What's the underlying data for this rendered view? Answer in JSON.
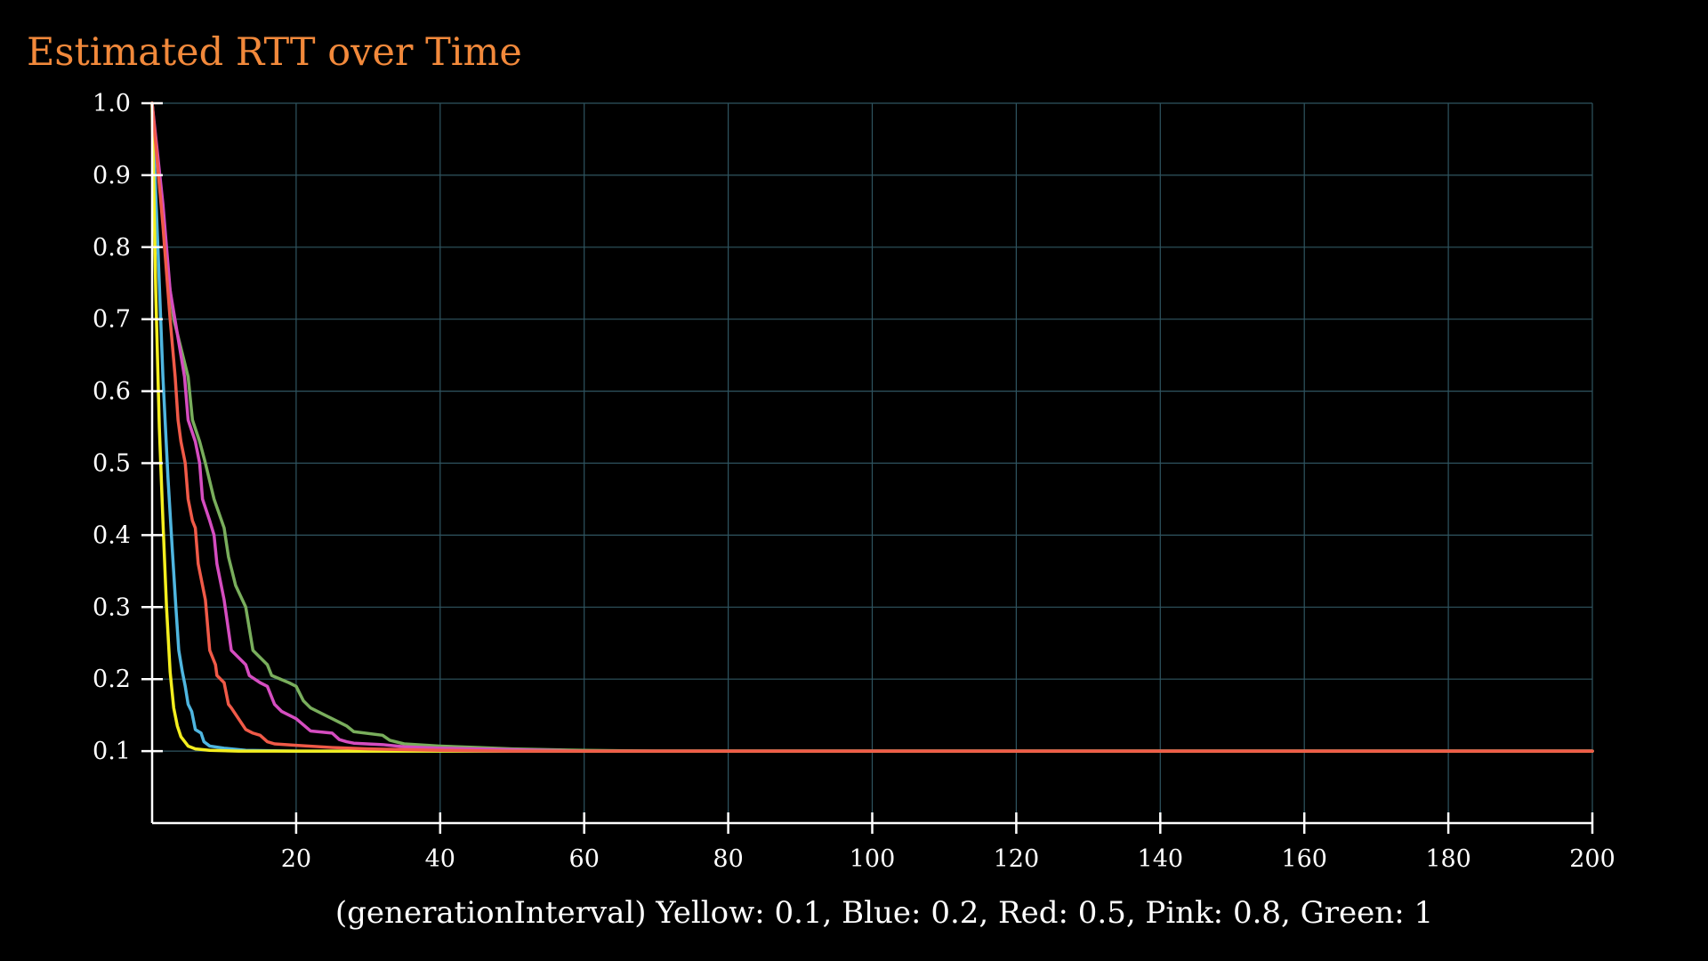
{
  "chart_data": {
    "type": "line",
    "title": "Estimated RTT over Time",
    "xlabel": "(generationInterval) Yellow: 0.1, Blue: 0.2, Red: 0.5, Pink: 0.8, Green: 1",
    "ylabel": "",
    "xlim": [
      0,
      200
    ],
    "ylim": [
      0,
      1.0
    ],
    "x_ticks": [
      20,
      40,
      60,
      80,
      100,
      120,
      140,
      160,
      180,
      200
    ],
    "y_ticks": [
      0.1,
      0.2,
      0.3,
      0.4,
      0.5,
      0.6,
      0.7,
      0.8,
      0.9,
      1.0
    ],
    "x_tick_labels": [
      "20",
      "40",
      "60",
      "80",
      "100",
      "120",
      "140",
      "160",
      "180",
      "200"
    ],
    "y_tick_labels": [
      "0.1",
      "0.2",
      "0.3",
      "0.4",
      "0.5",
      "0.6",
      "0.7",
      "0.8",
      "0.9",
      "1.0"
    ],
    "grid": true,
    "colors": {
      "background": "#000000",
      "title": "#f2893b",
      "grid": "#2f5561",
      "axis": "#ffffff"
    },
    "series": [
      {
        "color": "#f4ee1f",
        "points": [
          [
            0,
            1.0
          ],
          [
            0.5,
            0.74
          ],
          [
            1,
            0.55
          ],
          [
            1.5,
            0.42
          ],
          [
            2,
            0.3
          ],
          [
            2.5,
            0.21
          ],
          [
            3,
            0.16
          ],
          [
            3.5,
            0.135
          ],
          [
            4,
            0.12
          ],
          [
            5,
            0.107
          ],
          [
            6,
            0.103
          ],
          [
            8,
            0.101
          ],
          [
            12,
            0.1
          ],
          [
            20,
            0.1
          ],
          [
            200,
            0.1
          ]
        ]
      },
      {
        "color": "#4fb6e0",
        "points": [
          [
            0,
            1.0
          ],
          [
            0.8,
            0.8
          ],
          [
            1.5,
            0.62
          ],
          [
            2.2,
            0.48
          ],
          [
            2.8,
            0.38
          ],
          [
            3.3,
            0.3
          ],
          [
            3.7,
            0.24
          ],
          [
            4.2,
            0.21
          ],
          [
            4.6,
            0.19
          ],
          [
            5,
            0.165
          ],
          [
            5.5,
            0.155
          ],
          [
            6,
            0.13
          ],
          [
            6.8,
            0.125
          ],
          [
            7.2,
            0.113
          ],
          [
            8,
            0.107
          ],
          [
            10,
            0.104
          ],
          [
            13,
            0.101
          ],
          [
            20,
            0.1
          ],
          [
            200,
            0.1
          ]
        ]
      },
      {
        "color": "#f05a48",
        "points": [
          [
            0,
            1.0
          ],
          [
            1.5,
            0.83
          ],
          [
            2.5,
            0.7
          ],
          [
            3.2,
            0.62
          ],
          [
            3.6,
            0.56
          ],
          [
            4,
            0.53
          ],
          [
            4.6,
            0.5
          ],
          [
            5,
            0.45
          ],
          [
            5.6,
            0.42
          ],
          [
            6,
            0.41
          ],
          [
            6.4,
            0.36
          ],
          [
            7,
            0.33
          ],
          [
            7.4,
            0.31
          ],
          [
            8,
            0.24
          ],
          [
            8.8,
            0.22
          ],
          [
            9,
            0.205
          ],
          [
            10,
            0.195
          ],
          [
            10.6,
            0.165
          ],
          [
            11,
            0.16
          ],
          [
            12,
            0.145
          ],
          [
            13,
            0.13
          ],
          [
            14,
            0.125
          ],
          [
            15,
            0.122
          ],
          [
            16,
            0.113
          ],
          [
            17,
            0.11
          ],
          [
            20,
            0.108
          ],
          [
            25,
            0.105
          ],
          [
            30,
            0.103
          ],
          [
            40,
            0.101
          ],
          [
            50,
            0.1
          ],
          [
            200,
            0.1
          ]
        ]
      },
      {
        "color": "#d54dc0",
        "points": [
          [
            0,
            1.0
          ],
          [
            1.5,
            0.86
          ],
          [
            2.5,
            0.74
          ],
          [
            3.5,
            0.68
          ],
          [
            4.5,
            0.62
          ],
          [
            5,
            0.56
          ],
          [
            6,
            0.53
          ],
          [
            6.6,
            0.5
          ],
          [
            7,
            0.45
          ],
          [
            8,
            0.42
          ],
          [
            8.6,
            0.4
          ],
          [
            9,
            0.36
          ],
          [
            10,
            0.31
          ],
          [
            11,
            0.24
          ],
          [
            12,
            0.23
          ],
          [
            13,
            0.22
          ],
          [
            13.5,
            0.205
          ],
          [
            15,
            0.195
          ],
          [
            16,
            0.19
          ],
          [
            17,
            0.165
          ],
          [
            18,
            0.155
          ],
          [
            20,
            0.145
          ],
          [
            22,
            0.128
          ],
          [
            25,
            0.125
          ],
          [
            26,
            0.116
          ],
          [
            27,
            0.113
          ],
          [
            28,
            0.111
          ],
          [
            32,
            0.109
          ],
          [
            35,
            0.106
          ],
          [
            40,
            0.104
          ],
          [
            50,
            0.102
          ],
          [
            60,
            0.1
          ],
          [
            200,
            0.1
          ]
        ]
      },
      {
        "color": "#79ae5c",
        "points": [
          [
            0,
            1.0
          ],
          [
            1,
            0.89
          ],
          [
            2,
            0.78
          ],
          [
            3,
            0.7
          ],
          [
            4,
            0.66
          ],
          [
            5,
            0.62
          ],
          [
            5.6,
            0.56
          ],
          [
            6.6,
            0.53
          ],
          [
            7.4,
            0.5
          ],
          [
            8.6,
            0.45
          ],
          [
            10,
            0.41
          ],
          [
            10.6,
            0.37
          ],
          [
            11.6,
            0.33
          ],
          [
            13,
            0.3
          ],
          [
            14,
            0.24
          ],
          [
            16,
            0.22
          ],
          [
            16.6,
            0.205
          ],
          [
            19,
            0.195
          ],
          [
            20,
            0.19
          ],
          [
            21,
            0.17
          ],
          [
            22,
            0.16
          ],
          [
            24,
            0.15
          ],
          [
            25,
            0.145
          ],
          [
            27,
            0.135
          ],
          [
            28,
            0.127
          ],
          [
            32,
            0.122
          ],
          [
            33,
            0.115
          ],
          [
            35,
            0.11
          ],
          [
            40,
            0.107
          ],
          [
            45,
            0.105
          ],
          [
            50,
            0.103
          ],
          [
            60,
            0.101
          ],
          [
            70,
            0.1
          ],
          [
            200,
            0.1
          ]
        ]
      }
    ]
  }
}
